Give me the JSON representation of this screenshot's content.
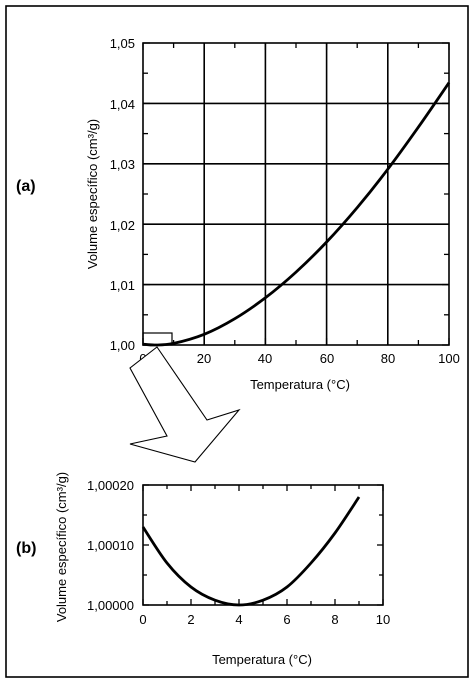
{
  "charts": [
    {
      "panel_label": "(a)",
      "xlabel": "Temperatura (°C)",
      "ylabel": "Volume específico (cm³/g)",
      "xticks": [
        "0",
        "20",
        "40",
        "60",
        "80",
        "100"
      ],
      "yticks": [
        "1,00",
        "1,01",
        "1,02",
        "1,03",
        "1,04",
        "1,05"
      ]
    },
    {
      "panel_label": "(b)",
      "xlabel": "Temperatura (°C)",
      "ylabel": "Volume específico (cm³/g)",
      "xticks": [
        "0",
        "2",
        "4",
        "6",
        "8",
        "10"
      ],
      "yticks": [
        "1,00000",
        "1,00010",
        "1,00020"
      ]
    }
  ],
  "chart_data": [
    {
      "type": "line",
      "x": [
        0,
        4,
        10,
        20,
        30,
        40,
        50,
        60,
        70,
        80,
        90,
        100
      ],
      "y": [
        1.00013,
        1.0,
        1.00027,
        1.00177,
        1.00435,
        1.00782,
        1.01207,
        1.01705,
        1.02275,
        1.0291,
        1.03608,
        1.04343
      ],
      "xlabel": "Temperatura (°C)",
      "ylabel": "Volume específico (cm³/g)",
      "xlim": [
        0,
        100
      ],
      "ylim": [
        1.0,
        1.05
      ],
      "grid": true
    },
    {
      "type": "line",
      "x": [
        0,
        1,
        2,
        3,
        4,
        5,
        6,
        7,
        8,
        9
      ],
      "y": [
        1.00013,
        1.00007,
        1.00003,
        1.000008,
        1.0,
        1.000008,
        1.00003,
        1.00007,
        1.00012,
        1.00018
      ],
      "xlabel": "Temperatura (°C)",
      "ylabel": "Volume específico (cm³/g)",
      "xlim": [
        0,
        10
      ],
      "ylim": [
        1.0,
        1.0002
      ],
      "grid": false
    }
  ]
}
